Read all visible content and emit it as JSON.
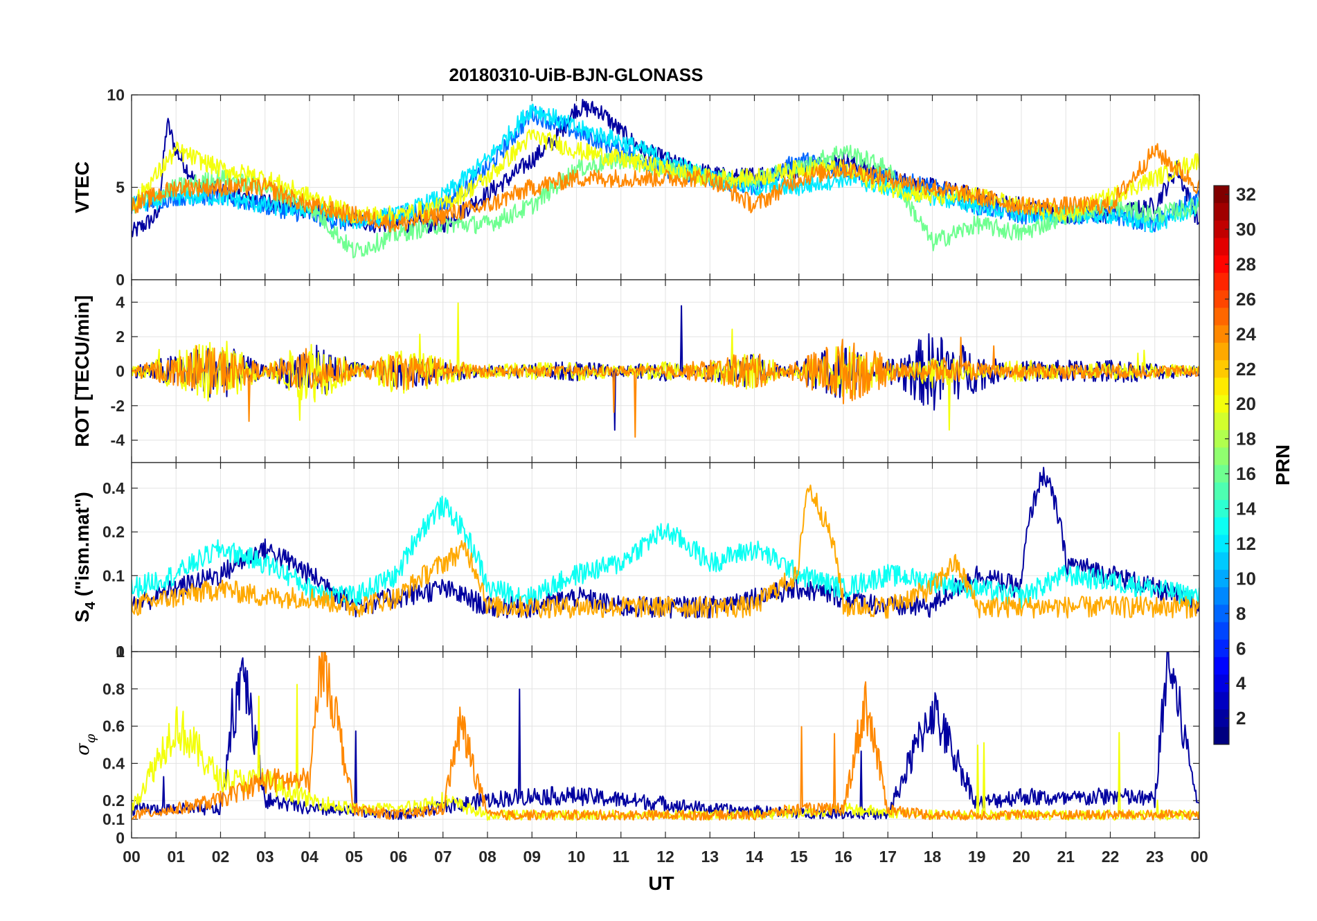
{
  "title": "20180310-UiB-BJN-GLONASS",
  "xlabel": "UT",
  "x_ticks": [
    "00",
    "01",
    "02",
    "03",
    "04",
    "05",
    "06",
    "07",
    "08",
    "09",
    "10",
    "11",
    "12",
    "13",
    "14",
    "15",
    "16",
    "17",
    "18",
    "19",
    "20",
    "21",
    "22",
    "23",
    "00"
  ],
  "colorbar": {
    "label": "PRN",
    "range": [
      1,
      32
    ],
    "ticks": [
      "2",
      "4",
      "6",
      "8",
      "10",
      "12",
      "14",
      "16",
      "18",
      "20",
      "22",
      "24",
      "26",
      "28",
      "30",
      "32"
    ],
    "colormap": "jet"
  },
  "panels": [
    {
      "key": "vtec",
      "ylabel": "VTEC",
      "yticks": [
        "0",
        "5",
        "10"
      ]
    },
    {
      "key": "rot",
      "ylabel": "ROT [TECU/min]",
      "yticks": [
        "-4",
        "-2",
        "0",
        "2",
        "4"
      ]
    },
    {
      "key": "s4",
      "ylabel_main": "S",
      "ylabel_sub": "4",
      "ylabel_rest": " (\"ism.mat\")",
      "yticks": [
        "0",
        "0.1",
        "0.2",
        "0.4"
      ]
    },
    {
      "key": "sigma",
      "ylabel_main": "σ",
      "ylabel_sub": "φ",
      "yticks": [
        "0",
        "0.1",
        "0.2",
        "0.4",
        "0.6",
        "0.8",
        "1"
      ]
    }
  ],
  "chart_data": {
    "type": "line",
    "title": "20180310-UiB-BJN-GLONASS",
    "xlabel": "UT",
    "xlim": [
      0,
      24
    ],
    "legend": "colorbar (PRN), right",
    "grid": true,
    "panels": [
      {
        "ylabel": "VTEC",
        "ylim": [
          0,
          10
        ],
        "series": [
          {
            "prn": 2,
            "x": [
              0,
              0.6,
              0.8,
              1.0,
              1.5,
              2.5,
              3.5,
              4.5,
              5.5,
              7.0,
              8.5,
              9.5,
              10.0,
              10.5,
              11.0,
              11.5,
              12.5,
              13.5,
              15.0,
              16.0,
              17.0,
              18.0,
              19.0,
              20.0,
              21.0,
              22.0,
              23.0,
              23.5,
              24
            ],
            "y": [
              2.5,
              3.5,
              8.5,
              7.0,
              5.0,
              4.5,
              4.0,
              3.5,
              3.0,
              3.0,
              5.5,
              7.5,
              9.3,
              9.2,
              8.0,
              7.0,
              6.0,
              5.5,
              6.0,
              6.5,
              5.5,
              5.0,
              4.5,
              4.0,
              3.5,
              3.5,
              4.0,
              6.0,
              3.0
            ]
          },
          {
            "prn": 8,
            "x": [
              0,
              1,
              2,
              3,
              4,
              5,
              6,
              7,
              8,
              9,
              10,
              11,
              12,
              13,
              14,
              15,
              16,
              17,
              18,
              19,
              20,
              21,
              22,
              23,
              24
            ],
            "y": [
              4.0,
              4.5,
              4.5,
              4.0,
              3.5,
              3.0,
              3.5,
              4.0,
              6.0,
              9.0,
              8.0,
              7.0,
              6.0,
              5.5,
              5.0,
              6.5,
              6.0,
              5.5,
              5.0,
              4.0,
              3.5,
              3.5,
              3.5,
              3.0,
              4.5
            ]
          },
          {
            "prn": 12,
            "x": [
              0,
              1,
              2,
              3,
              4,
              5,
              6,
              7,
              8,
              9,
              10,
              11,
              12,
              13,
              14,
              15,
              16,
              17,
              18,
              19,
              20,
              21,
              22,
              23,
              24
            ],
            "y": [
              4.0,
              4.5,
              4.5,
              4.0,
              3.8,
              3.2,
              3.5,
              4.5,
              6.5,
              9.3,
              8.2,
              7.5,
              6.5,
              5.5,
              5.0,
              5.0,
              5.5,
              5.0,
              4.5,
              4.0,
              3.5,
              3.5,
              3.5,
              3.0,
              4.0
            ]
          },
          {
            "prn": 16,
            "x": [
              0,
              1,
              2,
              3,
              4,
              5,
              6,
              7,
              8,
              9,
              10,
              11,
              12,
              13,
              14,
              15,
              16,
              17,
              18,
              19,
              20,
              21,
              22,
              23,
              24
            ],
            "y": [
              4.0,
              5.0,
              5.5,
              5.0,
              4.0,
              1.5,
              2.5,
              3.0,
              3.0,
              4.0,
              6.0,
              6.5,
              6.0,
              5.5,
              5.5,
              6.0,
              7.0,
              6.0,
              2.0,
              3.0,
              2.5,
              3.5,
              4.0,
              3.5,
              4.0
            ]
          },
          {
            "prn": 20,
            "x": [
              0,
              1,
              2,
              3,
              4,
              5,
              6,
              7,
              8,
              9,
              10,
              11,
              12,
              13,
              14,
              15,
              16,
              17,
              18,
              19,
              20,
              21,
              22,
              23,
              24
            ],
            "y": [
              4.0,
              7.0,
              6.0,
              5.5,
              4.5,
              3.5,
              3.5,
              4.0,
              5.5,
              7.8,
              7.0,
              6.5,
              6.0,
              5.5,
              5.5,
              6.0,
              6.0,
              5.0,
              4.5,
              4.5,
              4.0,
              3.5,
              4.5,
              5.5,
              6.5
            ]
          },
          {
            "prn": 24,
            "x": [
              0,
              1,
              2,
              3,
              4,
              5,
              6,
              7,
              8,
              9,
              10,
              11,
              12,
              13,
              14,
              15,
              16,
              17,
              18,
              19,
              20,
              21,
              22,
              23,
              24
            ],
            "y": [
              4.0,
              5.0,
              5.0,
              5.0,
              4.0,
              3.5,
              3.0,
              3.5,
              4.0,
              5.0,
              5.5,
              5.5,
              5.5,
              5.5,
              4.0,
              5.5,
              6.0,
              5.5,
              5.0,
              4.5,
              4.0,
              4.0,
              4.0,
              7.0,
              5.0
            ]
          }
        ]
      },
      {
        "ylabel": "ROT [TECU/min]",
        "ylim": [
          -5.3,
          5.3
        ],
        "series": [
          {
            "prn": 2,
            "x": [
              0,
              2,
              4,
              6,
              8,
              10,
              12,
              14,
              16,
              18,
              20,
              22,
              24
            ],
            "y": [
              0,
              1.0,
              -1.0,
              0.5,
              0,
              -0.2,
              0.2,
              -0.5,
              1.0,
              -1.5,
              0.2,
              0.3,
              0
            ]
          },
          {
            "prn": 20,
            "x": [
              0,
              2,
              4,
              6,
              8,
              10,
              12,
              14,
              16,
              18,
              20,
              22,
              24
            ],
            "y": [
              0,
              -1.2,
              1.2,
              -0.8,
              0.1,
              0.2,
              -0.2,
              0.6,
              -1.0,
              0.5,
              -0.3,
              0.2,
              0
            ]
          },
          {
            "prn": 24,
            "x": [
              0,
              2,
              4,
              6,
              8,
              10,
              12,
              14,
              16,
              18,
              20,
              22,
              24
            ],
            "y": [
              0,
              0.8,
              -0.8,
              0.6,
              0,
              0,
              0,
              -0.6,
              1.2,
              -0.4,
              0.1,
              0.1,
              0
            ]
          }
        ]
      },
      {
        "ylabel": "S4 (\"ism.mat\")",
        "ylim": [
          0.03,
          0.6
        ],
        "yscale": "log",
        "series": [
          {
            "prn": 2,
            "x": [
              0,
              1,
              2,
              3,
              4,
              5,
              6,
              7,
              8,
              9,
              10,
              11,
              12,
              13,
              14,
              15,
              16,
              17,
              18,
              19,
              20,
              20.5,
              21,
              22,
              23,
              24
            ],
            "y": [
              0.06,
              0.08,
              0.1,
              0.15,
              0.1,
              0.06,
              0.07,
              0.08,
              0.06,
              0.06,
              0.07,
              0.06,
              0.06,
              0.06,
              0.07,
              0.08,
              0.07,
              0.06,
              0.06,
              0.1,
              0.08,
              0.5,
              0.12,
              0.1,
              0.08,
              0.06
            ]
          },
          {
            "prn": 13,
            "x": [
              0,
              1,
              2,
              3,
              4,
              5,
              6,
              7,
              8,
              9,
              10,
              11,
              12,
              13,
              14,
              15,
              16,
              17,
              18,
              19,
              20,
              21,
              22,
              23,
              24
            ],
            "y": [
              0.08,
              0.1,
              0.15,
              0.12,
              0.08,
              0.07,
              0.1,
              0.3,
              0.08,
              0.07,
              0.1,
              0.12,
              0.2,
              0.12,
              0.15,
              0.1,
              0.08,
              0.1,
              0.09,
              0.08,
              0.07,
              0.1,
              0.09,
              0.08,
              0.07
            ]
          },
          {
            "prn": 23,
            "x": [
              0,
              1,
              2,
              3,
              4,
              5,
              6,
              7,
              7.5,
              8,
              9,
              10,
              11,
              12,
              13,
              14,
              15,
              15.2,
              16,
              17,
              18,
              18.5,
              19,
              20,
              21,
              22,
              23,
              24
            ],
            "y": [
              0.06,
              0.07,
              0.08,
              0.07,
              0.07,
              0.06,
              0.07,
              0.12,
              0.15,
              0.06,
              0.06,
              0.06,
              0.06,
              0.06,
              0.06,
              0.06,
              0.1,
              0.4,
              0.06,
              0.06,
              0.08,
              0.12,
              0.06,
              0.06,
              0.06,
              0.06,
              0.06,
              0.06
            ]
          }
        ]
      },
      {
        "ylabel": "σφ",
        "ylim": [
          0,
          1
        ],
        "series": [
          {
            "prn": 2,
            "x": [
              0,
              2,
              2.5,
              3,
              4,
              6,
              8,
              9,
              10,
              11,
              12,
              13,
              14,
              15,
              16,
              17,
              18,
              19,
              20,
              21,
              22,
              23,
              23.3,
              24
            ],
            "y": [
              0.15,
              0.15,
              0.95,
              0.2,
              0.15,
              0.12,
              0.2,
              0.22,
              0.22,
              0.2,
              0.18,
              0.15,
              0.14,
              0.13,
              0.13,
              0.12,
              0.68,
              0.18,
              0.22,
              0.2,
              0.22,
              0.2,
              0.95,
              0.15
            ]
          },
          {
            "prn": 20,
            "x": [
              0,
              1,
              2,
              3,
              4,
              5,
              6,
              7,
              8,
              10,
              12,
              14,
              16,
              18,
              20,
              22,
              24
            ],
            "y": [
              0.15,
              0.6,
              0.3,
              0.3,
              0.2,
              0.15,
              0.15,
              0.2,
              0.12,
              0.12,
              0.12,
              0.12,
              0.15,
              0.12,
              0.12,
              0.12,
              0.12
            ]
          },
          {
            "prn": 24,
            "x": [
              0,
              1,
              2,
              3,
              4,
              4.3,
              5,
              6,
              7,
              7.4,
              8,
              10,
              12,
              14,
              15,
              16,
              16.5,
              17,
              18,
              20,
              22,
              24
            ],
            "y": [
              0.12,
              0.15,
              0.2,
              0.3,
              0.3,
              1.0,
              0.15,
              0.12,
              0.15,
              0.6,
              0.12,
              0.12,
              0.12,
              0.12,
              0.15,
              0.15,
              0.72,
              0.15,
              0.12,
              0.12,
              0.12,
              0.12
            ]
          }
        ]
      }
    ]
  }
}
